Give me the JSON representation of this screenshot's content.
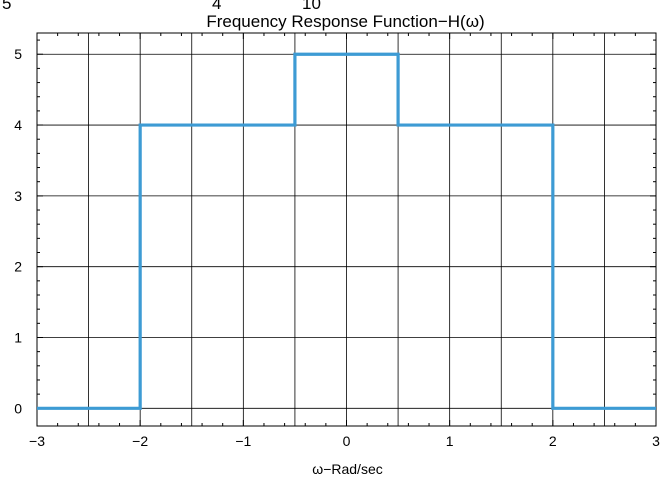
{
  "chart_data": {
    "type": "line",
    "title": "Frequency Response Function−H(ω)",
    "xlabel": "ω−Rad/sec",
    "ylabel": "",
    "xlim": [
      -3,
      3
    ],
    "ylim": [
      -0.25,
      5.3
    ],
    "x_ticks": [
      -3,
      -2,
      -1,
      0,
      1,
      2,
      3
    ],
    "x_tick_labels": [
      "−3",
      "−2",
      "−1",
      "0",
      "1",
      "2",
      "3"
    ],
    "y_ticks": [
      0,
      1,
      2,
      3,
      4,
      5
    ],
    "y_tick_labels": [
      "0",
      "1",
      "2",
      "3",
      "4",
      "5"
    ],
    "grid": true,
    "line_style": "step",
    "series": [
      {
        "color": "#3d9bd4",
        "x": [
          -3,
          -2,
          -2,
          -0.5,
          -0.5,
          0.5,
          0.5,
          2,
          2,
          3
        ],
        "y": [
          0,
          0,
          4,
          4,
          5,
          5,
          4,
          4,
          0,
          0
        ]
      }
    ],
    "cropped_text": [
      "5",
      "4",
      "10"
    ]
  }
}
